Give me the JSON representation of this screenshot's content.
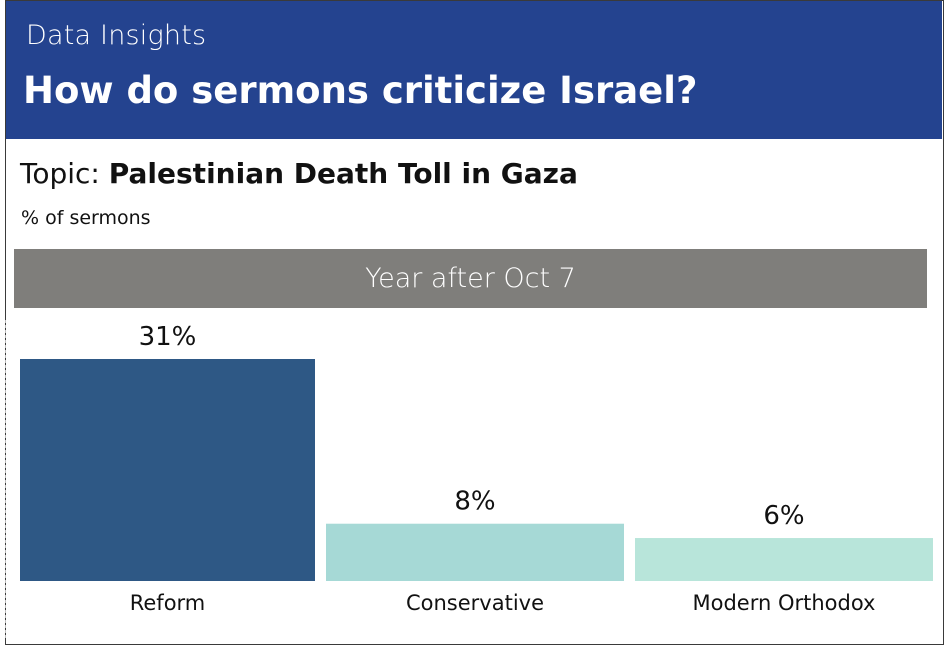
{
  "header": {
    "kicker": "Data Insights",
    "headline": "How do sermons criticize Israel?"
  },
  "topic": {
    "label": "Topic:",
    "value": "Palestinian Death Toll in Gaza"
  },
  "subtitle": "% of sermons",
  "panel_title": "Year after Oct 7",
  "colors": {
    "header_bg": "#24438f",
    "panel_bg": "#7f7e7b",
    "bars": [
      "#2e5885",
      "#a6d9d6",
      "#b8e5da"
    ]
  },
  "chart_data": {
    "type": "bar",
    "title": "Palestinian Death Toll in Gaza",
    "ylabel": "% of sermons",
    "panel": "Year after Oct 7",
    "categories": [
      "Reform",
      "Conservative",
      "Modern Orthodox"
    ],
    "values": [
      31,
      8,
      6
    ],
    "value_labels": [
      "31%",
      "8%",
      "6%"
    ],
    "ylim": [
      0,
      31
    ],
    "grid": false,
    "legend": "none"
  }
}
